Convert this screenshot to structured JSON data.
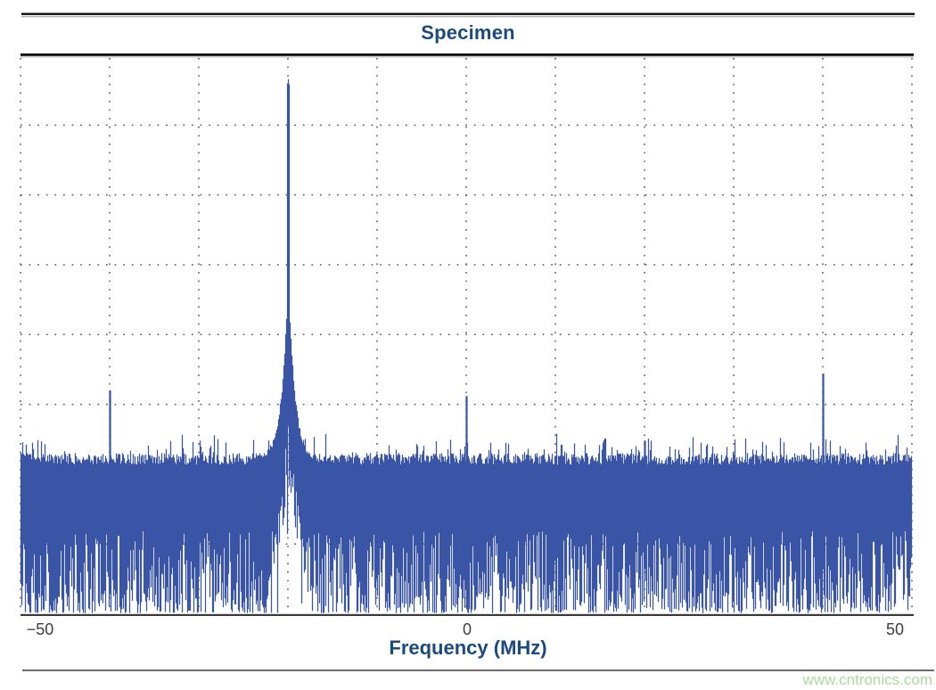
{
  "page": {
    "watermark": "www.cntronics.com"
  },
  "colors": {
    "accent_navy": "#1b4a7d",
    "trace_blue": "#3a55a5",
    "grid_gray": "#555555",
    "tick_text": "#3d3d3d",
    "watermark_green": "#abdc9b"
  },
  "chart_data": {
    "type": "line",
    "title": "Specimen",
    "xlabel": "Frequency (MHz)",
    "ylabel": "",
    "xlim": [
      -50,
      50
    ],
    "xticks": [
      -50,
      0,
      50
    ],
    "xtick_labels": [
      "−50",
      "0",
      "50"
    ],
    "x_grid_step_mhz": 10,
    "y_divisions": 8,
    "y_tick_labels": [],
    "grid": "dotted, both axes",
    "legend": "none",
    "amp_units": "normalized 0-1 of plot height (y axis unlabeled)",
    "series": [
      {
        "name": "spectrum",
        "description": "dense noise floor spectrum with strong carrier at -20 MHz and small spurs; white wedge gap in noise beneath carrier skirt",
        "noise_floor_amp": 0.275,
        "noise_bottom_amp_range": [
          0.0,
          0.15
        ],
        "peaks": [
          {
            "freq_mhz": -40,
            "amp": 0.4,
            "type": "spur"
          },
          {
            "freq_mhz": -20,
            "amp": 0.96,
            "type": "carrier",
            "skirt_half_width_mhz": 3
          },
          {
            "freq_mhz": 0,
            "amp": 0.39,
            "type": "spur"
          },
          {
            "freq_mhz": 20,
            "amp": 0.31,
            "type": "spur"
          },
          {
            "freq_mhz": 40,
            "amp": 0.43,
            "type": "spur"
          }
        ]
      }
    ]
  }
}
